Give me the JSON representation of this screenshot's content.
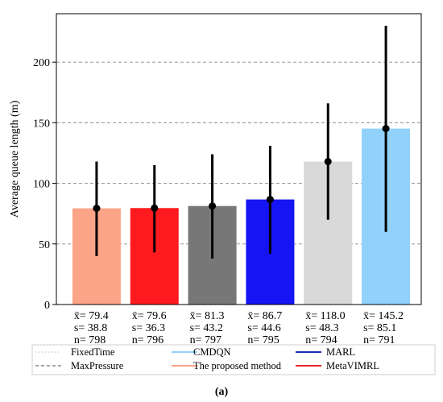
{
  "chart_data": {
    "type": "bar",
    "ylabel": "Average queue length (m)",
    "ylim": [
      0,
      240
    ],
    "yticks": [
      0,
      50,
      100,
      150,
      200
    ],
    "grid": "horizontal dashed",
    "bars": [
      {
        "mean": 79.4,
        "sd": 38.8,
        "n": 798,
        "mean_label": "x̄= 79.4",
        "sd_label": "s= 38.8",
        "n_label": "n= 798",
        "err_low": 40,
        "err_high": 118,
        "color": "#FCA488"
      },
      {
        "mean": 79.6,
        "sd": 36.3,
        "n": 796,
        "mean_label": "x̄= 79.6",
        "sd_label": "s= 36.3",
        "n_label": "n= 796",
        "err_low": 43,
        "err_high": 115,
        "color": "#FE1A1F"
      },
      {
        "mean": 81.3,
        "sd": 43.2,
        "n": 797,
        "mean_label": "x̄= 81.3",
        "sd_label": "s= 43.2",
        "n_label": "n= 797",
        "err_low": 38,
        "err_high": 124,
        "color": "#777777"
      },
      {
        "mean": 86.7,
        "sd": 44.6,
        "n": 795,
        "mean_label": "x̄= 86.7",
        "sd_label": "s= 44.6",
        "n_label": "n= 795",
        "err_low": 42,
        "err_high": 131,
        "color": "#1414F5"
      },
      {
        "mean": 118.0,
        "sd": 48.3,
        "n": 794,
        "mean_label": "x̄= 118.0",
        "sd_label": "s= 48.3",
        "n_label": "n= 794",
        "err_low": 70,
        "err_high": 166,
        "color": "#D9D9D9"
      },
      {
        "mean": 145.2,
        "sd": 85.1,
        "n": 791,
        "mean_label": "x̄= 145.2",
        "sd_label": "s= 85.1",
        "n_label": "n= 791",
        "err_low": 60,
        "err_high": 230,
        "color": "#91D1FA"
      }
    ],
    "legend": [
      {
        "label": "FixedTime",
        "style": "dotted",
        "color": "#C8C8C8"
      },
      {
        "label": "CMDQN",
        "style": "solid",
        "color": "#91D1FA"
      },
      {
        "label": "MARL",
        "style": "solid",
        "color": "#1A2FB5"
      },
      {
        "label": "MaxPressure",
        "style": "dashed",
        "color": "#707070"
      },
      {
        "label": "The proposed method",
        "style": "solid",
        "color": "#FCA488"
      },
      {
        "label": "MetaVIMRL",
        "style": "solid",
        "color": "#E8262B"
      }
    ],
    "legend_placement": "bottom"
  },
  "caption": "(a)"
}
